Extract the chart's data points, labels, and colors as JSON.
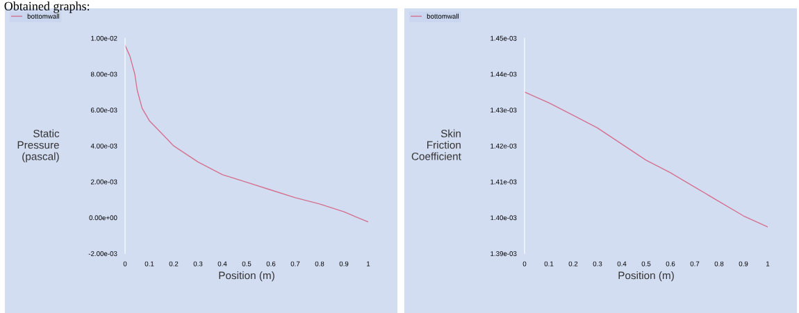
{
  "chart_data": [
    {
      "type": "line",
      "xlabel": "Position (m)",
      "ylabel": "Static\nPressure\n(pascal)",
      "annotations": [
        "Obtained graphs:"
      ],
      "x": [
        0,
        0.02,
        0.04,
        0.05,
        0.07,
        0.1,
        0.15,
        0.2,
        0.3,
        0.4,
        0.5,
        0.6,
        0.7,
        0.8,
        0.9,
        0.95,
        1.0
      ],
      "series": [
        {
          "name": "bottomwall",
          "color": "#d4708e",
          "values": [
            0.0096,
            0.009,
            0.008,
            0.0071,
            0.0061,
            0.0054,
            0.0047,
            0.004,
            0.0031,
            0.0024,
            0.00197,
            0.00154,
            0.00111,
            0.00076,
            0.00033,
            4e-05,
            -0.00024
          ]
        }
      ],
      "xlim": [
        0,
        1
      ],
      "xticks": [
        0,
        0.1,
        0.2,
        0.3,
        0.4,
        0.5,
        0.6,
        0.7,
        0.8,
        0.9,
        1
      ],
      "ylim": [
        -0.002,
        0.01
      ],
      "yticks": [
        {
          "value": -0.002,
          "label": "-2.00e-03"
        },
        {
          "value": 0,
          "label": "0.00e+00"
        },
        {
          "value": 0.002,
          "label": "2.00e-03"
        },
        {
          "value": 0.004,
          "label": "4.00e-03"
        },
        {
          "value": 0.006,
          "label": "6.00e-03"
        },
        {
          "value": 0.008,
          "label": "8.00e-03"
        },
        {
          "value": 0.01,
          "label": "1.00e-02"
        }
      ],
      "grid": false,
      "legend": "top left",
      "marker": "none",
      "line_style": "solid"
    },
    {
      "type": "line",
      "xlabel": "Position (m)",
      "ylabel": "Skin\nFriction\nCoefficient",
      "x": [
        0,
        0.1,
        0.2,
        0.3,
        0.4,
        0.5,
        0.6,
        0.7,
        0.8,
        0.9,
        1.0
      ],
      "series": [
        {
          "name": "bottomwall",
          "color": "#d4708e",
          "values": [
            0.001435,
            0.001432,
            0.0014285,
            0.001425,
            0.0014205,
            0.001416,
            0.0014125,
            0.0014085,
            0.0014045,
            0.0014005,
            0.0013974
          ]
        }
      ],
      "xlim": [
        0,
        1
      ],
      "xticks": [
        0,
        0.1,
        0.2,
        0.3,
        0.4,
        0.5,
        0.6,
        0.7,
        0.8,
        0.9,
        1
      ],
      "ylim": [
        0.00139,
        0.00145
      ],
      "yticks": [
        {
          "value": 0.00139,
          "label": "1.39e-03"
        },
        {
          "value": 0.0014,
          "label": "1.40e-03"
        },
        {
          "value": 0.00141,
          "label": "1.41e-03"
        },
        {
          "value": 0.00142,
          "label": "1.42e-03"
        },
        {
          "value": 0.00143,
          "label": "1.43e-03"
        },
        {
          "value": 0.00144,
          "label": "1.44e-03"
        },
        {
          "value": 0.00145,
          "label": "1.45e-03"
        }
      ],
      "grid": false,
      "legend": "top left",
      "marker": "none",
      "line_style": "solid"
    }
  ]
}
